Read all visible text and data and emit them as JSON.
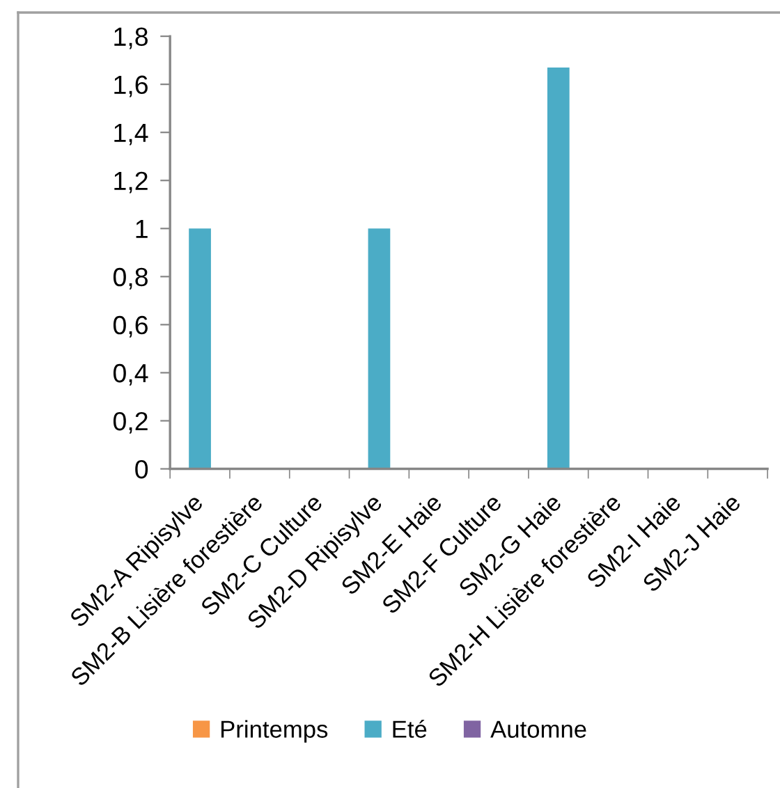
{
  "chart_data": {
    "type": "bar",
    "categories": [
      "SM2-A Ripisylve",
      "SM2-B Lisière forestière",
      "SM2-C Culture",
      "SM2-D Ripisylve",
      "SM2-E Haie",
      "SM2-F Culture",
      "SM2-G Haie",
      "SM2-H Lisière forestière",
      "SM2-I Haie",
      "SM2-J Haie"
    ],
    "series": [
      {
        "name": "Printemps",
        "color": "#f79646",
        "values": [
          0,
          0,
          0,
          0,
          0,
          0,
          0,
          0,
          0,
          0
        ]
      },
      {
        "name": "Eté",
        "color": "#4bacc6",
        "values": [
          1,
          0,
          0,
          1,
          0,
          0,
          1.67,
          0,
          0,
          0
        ]
      },
      {
        "name": "Automne",
        "color": "#8064a2",
        "values": [
          0,
          0,
          0,
          0,
          0,
          0,
          0,
          0,
          0,
          0
        ]
      }
    ],
    "ylim": [
      0,
      1.8
    ],
    "yticks": [
      {
        "value": 0,
        "label": "0"
      },
      {
        "value": 0.2,
        "label": "0,2"
      },
      {
        "value": 0.4,
        "label": "0,4"
      },
      {
        "value": 0.6,
        "label": "0,6"
      },
      {
        "value": 0.8,
        "label": "0,8"
      },
      {
        "value": 1,
        "label": "1"
      },
      {
        "value": 1.2,
        "label": "1,2"
      },
      {
        "value": 1.4,
        "label": "1,4"
      },
      {
        "value": 1.6,
        "label": "1,6"
      },
      {
        "value": 1.8,
        "label": "1,8"
      }
    ],
    "grid": false,
    "legend": "bottom"
  }
}
